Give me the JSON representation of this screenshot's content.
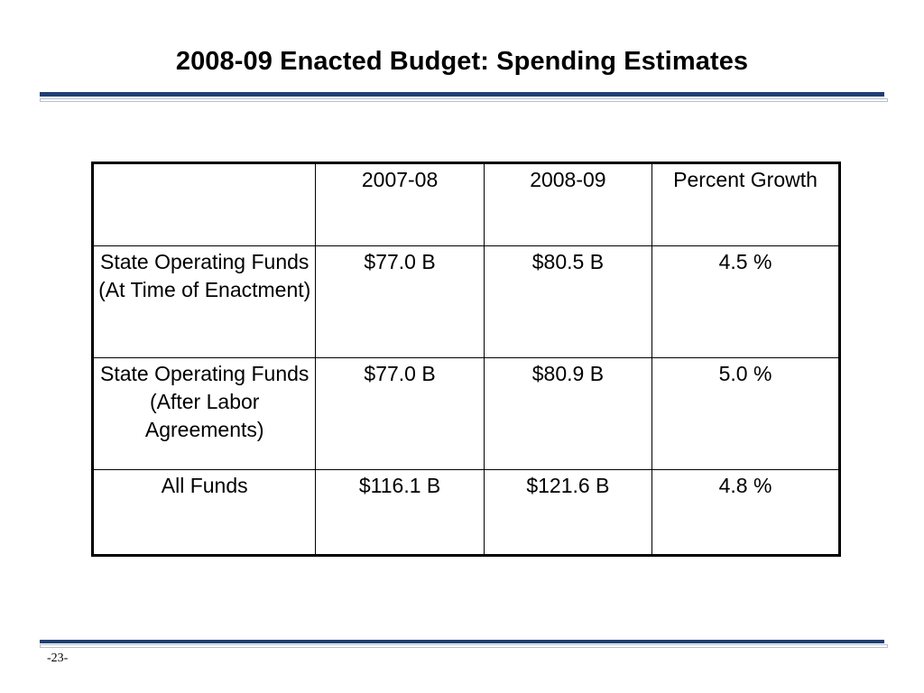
{
  "slide": {
    "title": "2008-09 Enacted Budget: Spending Estimates",
    "page_number": "-23-"
  },
  "table": {
    "header": [
      "",
      "2007-08",
      "2008-09",
      "Percent Growth"
    ],
    "rows": [
      [
        "State Operating Funds (At Time of Enactment)",
        "$77.0 B",
        "$80.5 B",
        "4.5 %"
      ],
      [
        "State Operating Funds (After Labor Agreements)",
        "$77.0 B",
        "$80.9 B",
        "5.0 %"
      ],
      [
        "All Funds",
        "$116.1 B",
        "$121.6 B",
        "4.8 %"
      ]
    ]
  },
  "colors": {
    "rule": "#1f3f73",
    "rule_thin": "#b8c0cc"
  }
}
